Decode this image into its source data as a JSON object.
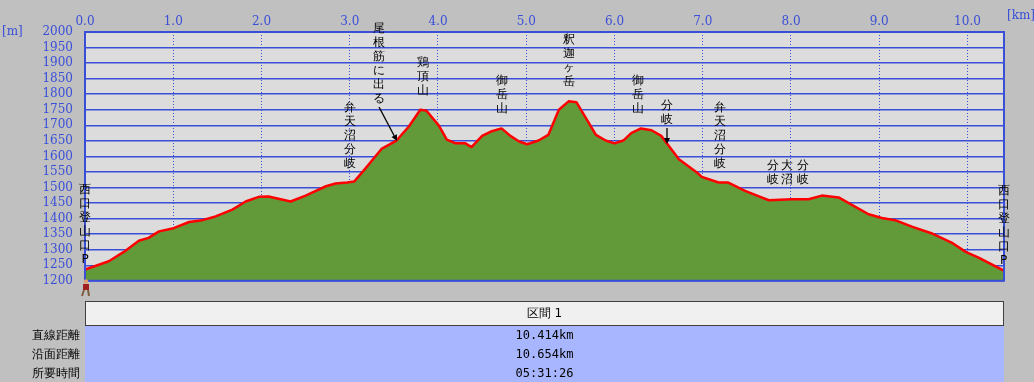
{
  "chart_data": {
    "type": "area",
    "xlabel": "[km]",
    "ylabel": "[m]",
    "series": [
      {
        "color": "#629a3a",
        "x": [
          0,
          0.27,
          0.44,
          0.61,
          0.72,
          0.84,
          0.99,
          1.18,
          1.33,
          1.48,
          1.67,
          1.82,
          1.97,
          2.08,
          2.33,
          2.5,
          2.73,
          2.84,
          2.97,
          3.05,
          3.16,
          3.36,
          3.53,
          3.67,
          3.8,
          3.87,
          4.01,
          4.1,
          4.2,
          4.31,
          4.38,
          4.5,
          4.61,
          4.72,
          4.82,
          4.92,
          5.01,
          5.14,
          5.25,
          5.37,
          5.48,
          5.57,
          5.67,
          5.79,
          5.9,
          6.0,
          6.1,
          6.19,
          6.3,
          6.42,
          6.53,
          6.61,
          6.73,
          6.93,
          6.99,
          7.18,
          7.29,
          7.48,
          7.75,
          8.01,
          8.2,
          8.35,
          8.54,
          8.69,
          8.88,
          9.03,
          9.18,
          9.37,
          9.59,
          9.82,
          9.98,
          10.12,
          10.41
        ],
        "values": [
          1236,
          1263,
          1293,
          1329,
          1338,
          1359,
          1368,
          1389,
          1395,
          1407,
          1429,
          1455,
          1470,
          1471,
          1455,
          1474,
          1504,
          1513,
          1516,
          1519,
          1555,
          1624,
          1651,
          1696,
          1750,
          1747,
          1699,
          1654,
          1642,
          1642,
          1630,
          1666,
          1681,
          1690,
          1666,
          1648,
          1639,
          1651,
          1669,
          1750,
          1777,
          1774,
          1726,
          1669,
          1651,
          1642,
          1651,
          1675,
          1690,
          1684,
          1666,
          1636,
          1591,
          1549,
          1534,
          1516,
          1516,
          1489,
          1459,
          1462,
          1462,
          1474,
          1468,
          1444,
          1414,
          1402,
          1395,
          1374,
          1353,
          1323,
          1293,
          1275,
          1233
        ]
      },
      {
        "type": "line",
        "color": "#ff0000",
        "x": [
          0,
          0.27,
          0.44,
          0.61,
          0.72,
          0.84,
          0.99,
          1.18,
          1.33,
          1.48,
          1.67,
          1.82,
          1.97,
          2.08,
          2.33,
          2.5,
          2.73,
          2.84,
          2.97,
          3.05,
          3.16,
          3.36,
          3.53,
          3.67,
          3.8,
          3.87,
          4.01,
          4.1,
          4.2,
          4.31,
          4.38,
          4.5,
          4.61,
          4.72,
          4.82,
          4.92,
          5.01,
          5.14,
          5.25,
          5.37,
          5.48,
          5.57,
          5.67,
          5.79,
          5.9,
          6.0,
          6.1,
          6.19,
          6.3,
          6.42,
          6.53,
          6.61,
          6.73,
          6.93,
          6.99,
          7.18,
          7.29,
          7.48,
          7.75,
          8.01,
          8.2,
          8.35,
          8.54,
          8.69,
          8.88,
          9.03,
          9.18,
          9.37,
          9.59,
          9.82,
          9.98,
          10.12,
          10.41
        ],
        "values": [
          1236,
          1263,
          1293,
          1329,
          1338,
          1359,
          1368,
          1389,
          1395,
          1407,
          1429,
          1455,
          1470,
          1471,
          1455,
          1474,
          1504,
          1513,
          1516,
          1519,
          1555,
          1624,
          1651,
          1696,
          1750,
          1747,
          1699,
          1654,
          1642,
          1642,
          1630,
          1666,
          1681,
          1690,
          1666,
          1648,
          1639,
          1651,
          1669,
          1750,
          1777,
          1774,
          1726,
          1669,
          1651,
          1642,
          1651,
          1675,
          1690,
          1684,
          1666,
          1636,
          1591,
          1549,
          1534,
          1516,
          1516,
          1489,
          1459,
          1462,
          1462,
          1474,
          1468,
          1444,
          1414,
          1402,
          1395,
          1374,
          1353,
          1323,
          1293,
          1275,
          1233
        ]
      }
    ],
    "xlim": [
      0,
      10.414
    ],
    "xticks": [
      {
        "value": 0,
        "label": "0.0"
      },
      {
        "value": 1,
        "label": "1.0"
      },
      {
        "value": 2,
        "label": "2.0"
      },
      {
        "value": 3,
        "label": "3.0"
      },
      {
        "value": 4,
        "label": "4.0"
      },
      {
        "value": 5,
        "label": "5.0"
      },
      {
        "value": 6,
        "label": "6.0"
      },
      {
        "value": 7,
        "label": "7.0"
      },
      {
        "value": 8,
        "label": "8.0"
      },
      {
        "value": 9,
        "label": "9.0"
      },
      {
        "value": 10,
        "label": "10.0"
      }
    ],
    "ylim": [
      1200,
      2000
    ],
    "yticks": [
      1200,
      1250,
      1300,
      1350,
      1400,
      1450,
      1500,
      1550,
      1600,
      1650,
      1700,
      1750,
      1800,
      1850,
      1900,
      1950,
      2000
    ],
    "grid": true,
    "legend": false,
    "annotations": [
      {
        "text": "弁天沼分岐",
        "x": 3.0,
        "y": 1516
      },
      {
        "text": "尾根筋に出る",
        "x": 3.53,
        "y": 1651
      },
      {
        "text": "鶏頂山",
        "x": 3.83,
        "y": 1750
      },
      {
        "text": "御岳山",
        "x": 4.72,
        "y": 1690
      },
      {
        "text": "釈迦ヶ岳",
        "x": 5.48,
        "y": 1777
      },
      {
        "text": "御岳山",
        "x": 6.27,
        "y": 1690
      },
      {
        "text": "分岐",
        "x": 6.6,
        "y": 1640
      },
      {
        "text": "弁天沼分岐",
        "x": 7.2,
        "y": 1516
      },
      {
        "text": "分岐",
        "x": 7.8,
        "y": 1462
      },
      {
        "text": "大沼",
        "x": 7.96,
        "y": 1462
      },
      {
        "text": "分岐",
        "x": 8.14,
        "y": 1462
      },
      {
        "text": "西口登山口P",
        "x": 0,
        "y": 1236
      },
      {
        "text": "西口登山口P",
        "x": 10.41,
        "y": 1233
      },
      "区間 1",
      "直線距離",
      "10.414km",
      "沿面距離",
      "10.654km",
      "所要時間",
      "05:31:26"
    ]
  }
}
